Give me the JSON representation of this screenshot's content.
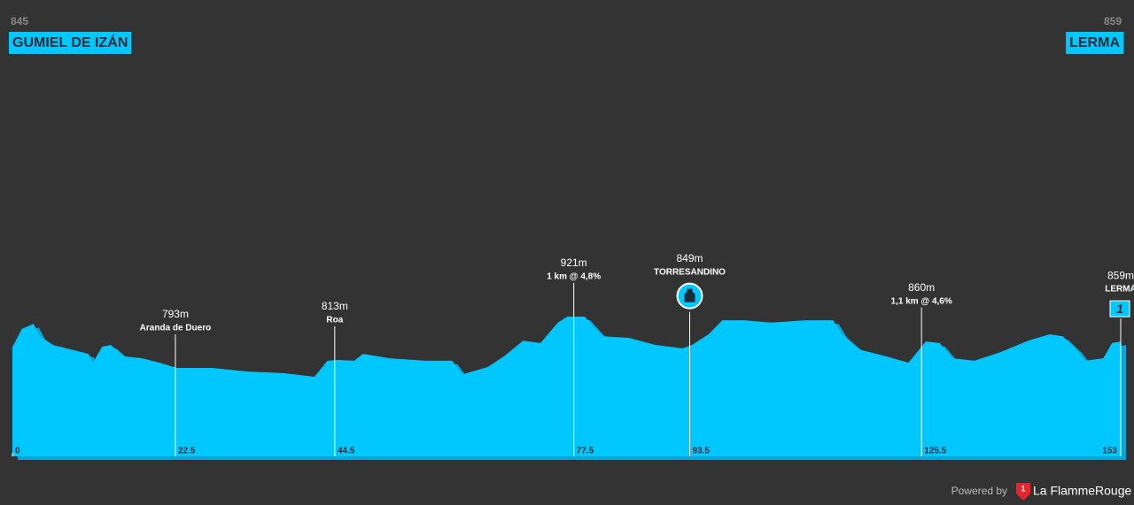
{
  "chart_data": {
    "type": "area",
    "start": {
      "elevation": 845,
      "name": "GUMIEL DE IZÁN"
    },
    "finish": {
      "elevation": 859,
      "name": "LERMA"
    },
    "color": "#00c8ff",
    "x": [
      0,
      1.3,
      2.9,
      3.8,
      5.6,
      8.1,
      10.5,
      11.1,
      12.4,
      13.6,
      15.4,
      17.9,
      20.3,
      22.7,
      27.6,
      32.5,
      37.4,
      41.7,
      43.5,
      45,
      47.2,
      48.4,
      52.1,
      57,
      60.7,
      62.1,
      65.6,
      68,
      70.5,
      72.9,
      75.3,
      76.6,
      79,
      81.5,
      85.1,
      88.8,
      92.5,
      93.8,
      96.1,
      98,
      101,
      104.7,
      109.6,
      113.3,
      114.5,
      116.9,
      120.6,
      123.7,
      126.1,
      128,
      129.8,
      132.8,
      136.5,
      140.2,
      143.2,
      145,
      146.9,
      148.1,
      150.6,
      151.8,
      153
    ],
    "values": [
      845,
      890,
      903,
      872,
      850,
      839,
      828,
      806,
      846,
      850,
      822,
      817,
      806,
      793,
      793,
      784,
      780,
      771,
      811,
      813,
      811,
      828,
      817,
      811,
      811,
      777,
      795,
      824,
      861,
      855,
      906,
      921,
      921,
      872,
      868,
      850,
      842,
      850,
      877,
      912,
      912,
      906,
      912,
      912,
      877,
      839,
      822,
      806,
      859,
      855,
      817,
      811,
      833,
      861,
      877,
      872,
      839,
      811,
      817,
      855,
      859
    ],
    "xlim": [
      0,
      153
    ],
    "xticks": [
      0,
      22.5,
      44.5,
      77.5,
      93.5,
      125.5,
      153
    ],
    "annotations": [
      {
        "x": 22.5,
        "elevation": 793,
        "elevation_label": "793m",
        "text": "Aranda de Duero"
      },
      {
        "x": 44.5,
        "elevation": 813,
        "elevation_label": "813m",
        "text": "Roa"
      },
      {
        "x": 77.5,
        "elevation": 921,
        "elevation_label": "921m",
        "text": "1 km @ 4,8%"
      },
      {
        "x": 93.5,
        "elevation": 849,
        "elevation_label": "849m",
        "text": "TORRESANDINO"
      },
      {
        "x": 125.5,
        "elevation": 860,
        "elevation_label": "860m",
        "text": "1,1 km @ 4,6%"
      },
      {
        "x": 153,
        "elevation": 859,
        "elevation_label": "859m",
        "text": "LERMA",
        "badge": "1"
      }
    ]
  },
  "footer": {
    "powered_by": "Powered by",
    "brand": "La FlammeRouge"
  }
}
